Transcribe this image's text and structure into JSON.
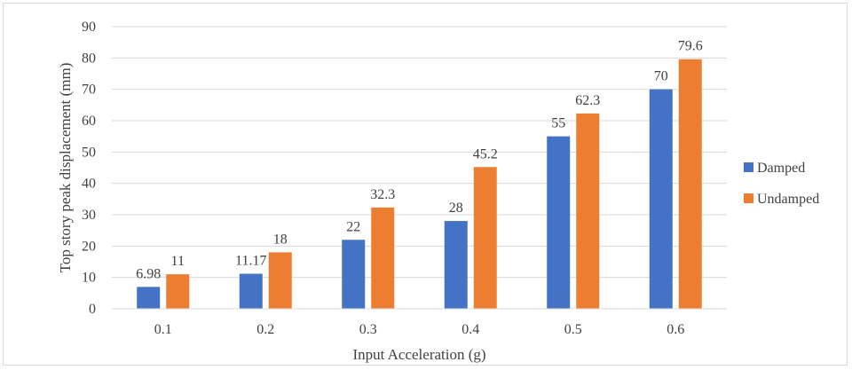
{
  "chart_data": {
    "type": "bar",
    "title": "",
    "xlabel": "Input Acceleration (g)",
    "ylabel": "Top story peak displacement (mm)",
    "categories": [
      "0.1",
      "0.2",
      "0.3",
      "0.4",
      "0.5",
      "0.6"
    ],
    "ylim": [
      0,
      90
    ],
    "yticks": [
      "0",
      "10",
      "20",
      "30",
      "40",
      "50",
      "60",
      "70",
      "80",
      "90"
    ],
    "grid": true,
    "legend_position": "right",
    "series": [
      {
        "name": "Damped",
        "color": "#4472c4",
        "values": [
          6.98,
          11.17,
          22,
          28,
          55,
          70
        ],
        "labels": [
          "6.98",
          "11.17",
          "22",
          "28",
          "55",
          "70"
        ]
      },
      {
        "name": "Undamped",
        "color": "#ed7d31",
        "values": [
          11,
          18,
          32.3,
          45.2,
          62.3,
          79.6
        ],
        "labels": [
          "11",
          "18",
          "32.3",
          "45.2",
          "62.3",
          "79.6"
        ]
      }
    ]
  }
}
